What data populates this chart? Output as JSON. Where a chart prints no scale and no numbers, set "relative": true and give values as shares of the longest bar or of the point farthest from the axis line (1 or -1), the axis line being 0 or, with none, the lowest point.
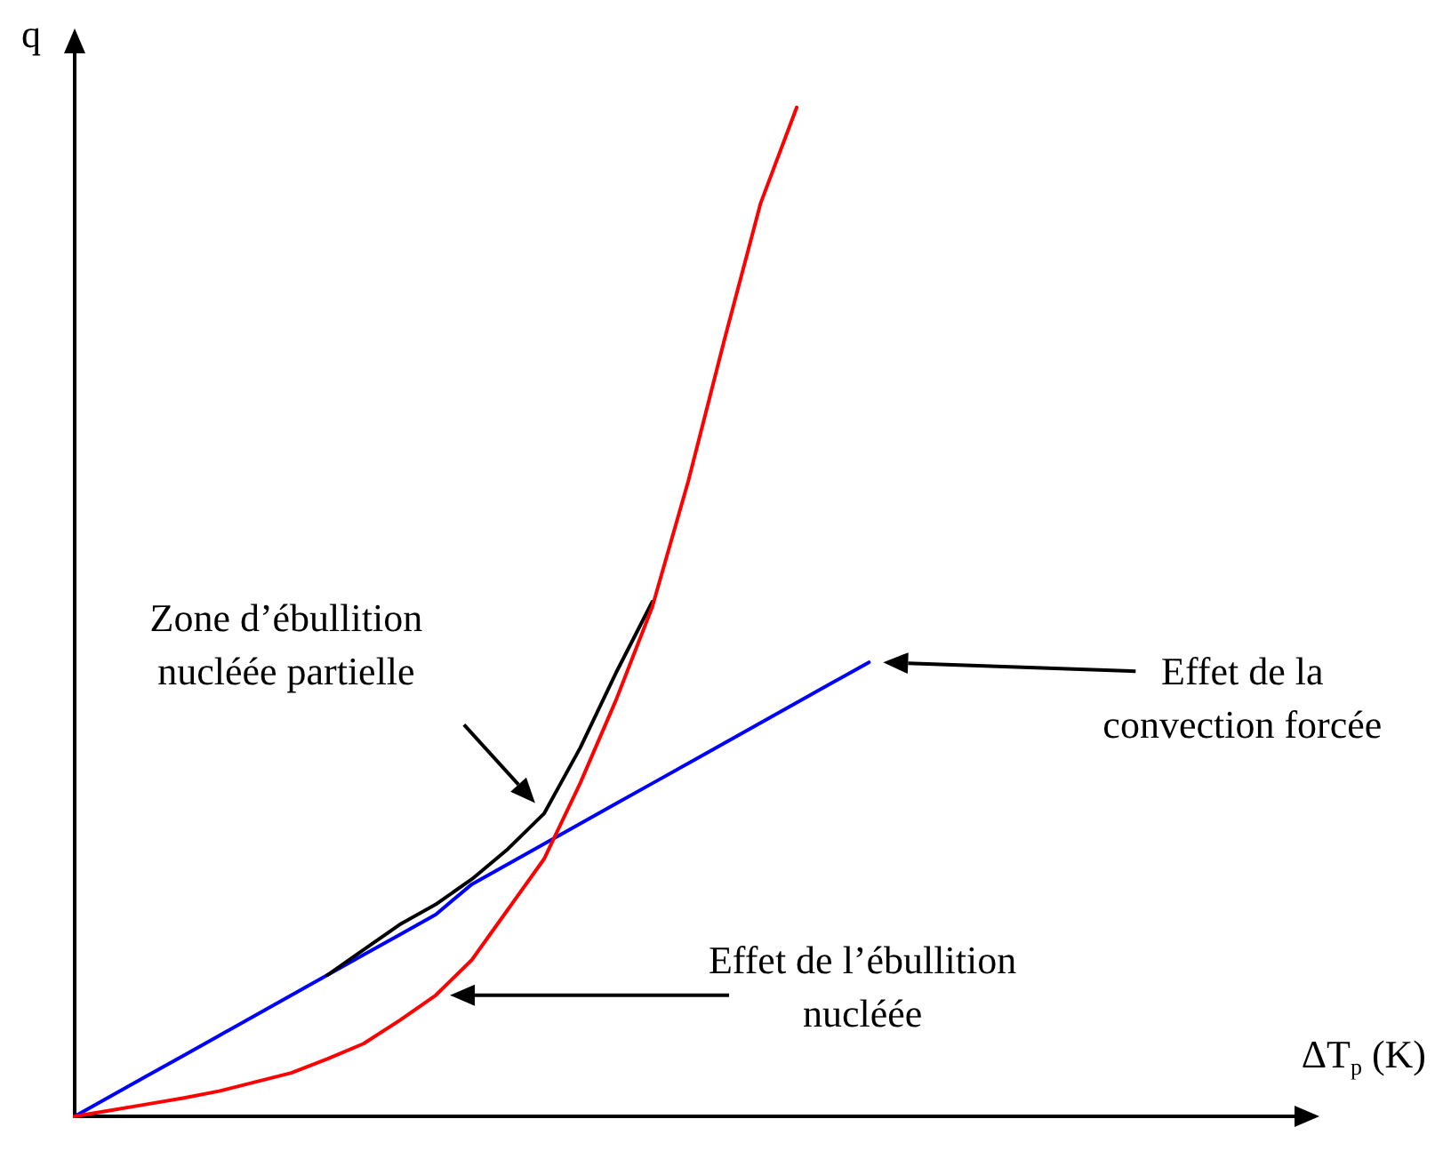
{
  "chart_data": {
    "type": "line",
    "relative": true,
    "xlabel": "ΔT$_{p}$ (K)",
    "ylabel": "q",
    "grid": false,
    "marker": "none",
    "line_style": "solid",
    "categories": [
      null,
      null,
      null,
      null,
      null,
      null,
      null,
      null,
      null,
      null,
      null,
      null,
      null,
      null,
      null,
      null,
      null,
      null,
      null,
      null,
      null,
      null,
      null,
      null,
      null,
      null,
      null,
      null,
      null,
      null,
      null,
      null,
      null,
      null
    ],
    "series": [
      {
        "color": "#0000ff",
        "values": [
          0,
          0.02,
          0.04,
          0.06,
          0.08,
          0.1,
          0.12,
          0.14,
          0.16,
          0.18,
          0.2,
          0.23,
          0.25,
          0.27,
          0.29,
          0.31,
          0.33,
          0.35,
          0.37,
          0.39,
          0.41,
          0.43,
          0.45,
          null,
          null,
          null,
          null,
          null,
          null,
          null,
          null,
          null,
          null,
          null
        ]
      },
      {
        "color": "#000000",
        "values": [
          null,
          null,
          null,
          null,
          null,
          null,
          null,
          0.14,
          0.165,
          0.19,
          0.21,
          0.235,
          0.265,
          0.3,
          0.365,
          0.44,
          0.51,
          null,
          null,
          null,
          null,
          null,
          null,
          null,
          null,
          null,
          null,
          null,
          null,
          null,
          null,
          null,
          null,
          null
        ]
      },
      {
        "color": "#ff0000",
        "values": [
          0,
          0.006,
          0.012,
          0.018,
          0.025,
          0.034,
          0.043,
          0.057,
          0.072,
          0.095,
          0.12,
          0.155,
          0.205,
          0.255,
          0.33,
          0.413,
          0.505,
          0.63,
          0.77,
          0.905,
          1,
          null,
          null,
          null,
          null,
          null,
          null,
          null,
          null,
          null,
          null,
          null,
          null,
          null
        ]
      }
    ],
    "annotations": [
      "Zone d’ébullition\nnucléée partielle",
      "Effet de la\nconvection forcée",
      "Effet de l’ébullition\nnucléée"
    ]
  }
}
